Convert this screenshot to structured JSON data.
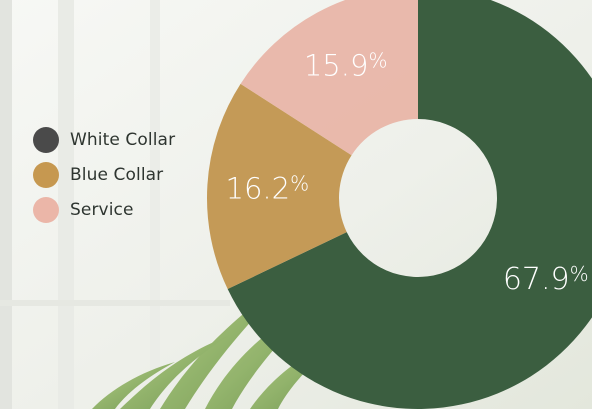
{
  "chart_data": {
    "type": "pie",
    "donut": true,
    "categories": [
      "White Collar",
      "Blue Collar",
      "Service"
    ],
    "values": [
      67.9,
      16.2,
      15.9
    ],
    "value_labels": [
      "67.9",
      "16.2",
      "15.9"
    ],
    "unit": "%",
    "colors": [
      "#3b5e40",
      "#c0924a",
      "#e8b3a4"
    ],
    "legend_position": "left",
    "title": ""
  },
  "legend_colors": [
    "#4a4a4a",
    "#c69850",
    "#ebb6a8"
  ]
}
